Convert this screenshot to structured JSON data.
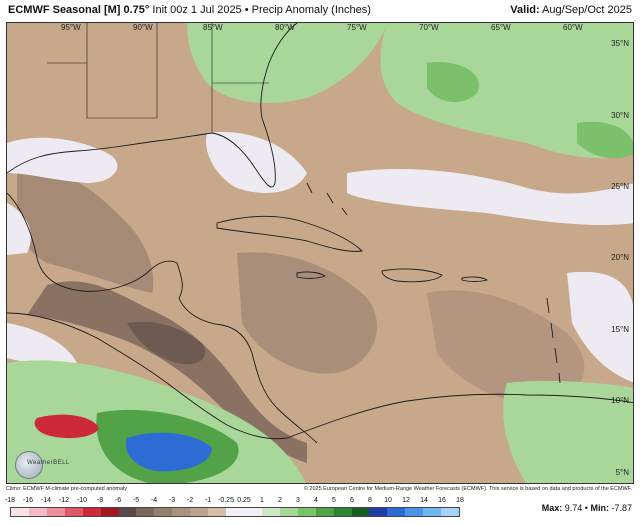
{
  "header": {
    "model": "ECMWF Seasonal [M] 0.75°",
    "init": "Init 00z 1 Jul 2025",
    "separator": "•",
    "product": "Precip Anomaly (Inches)",
    "valid_label": "Valid:",
    "valid_value": "Aug/Sep/Oct 2025"
  },
  "map": {
    "lon_labels": [
      "95°W",
      "90°W",
      "85°W",
      "80°W",
      "75°W",
      "70°W",
      "65°W",
      "60°W"
    ],
    "lat_labels": [
      "35°N",
      "30°N",
      "25°N",
      "20°N",
      "15°N",
      "10°N",
      "5°N"
    ],
    "logo_text": "WeatherBELL"
  },
  "footer": {
    "left_note": "Climo: ECMWF M-climate pre-computed anomaly",
    "right_note": "© 2025 European Centre for Medium-Range Weather Forecasts (ECMWF). This service is based on data and products of the ECMWF.",
    "max_label": "Max:",
    "max_value": "9.74",
    "min_label": "Min:",
    "min_value": "-7.87",
    "bullet": "•"
  },
  "colorbar": {
    "labels": [
      "-18",
      "-16",
      "-14",
      "-12",
      "-10",
      "-8",
      "-6",
      "-5",
      "-4",
      "-3",
      "-2",
      "-1",
      "-0.25",
      "0.25",
      "1",
      "2",
      "3",
      "4",
      "5",
      "6",
      "8",
      "10",
      "12",
      "14",
      "16",
      "18"
    ],
    "colors": [
      "#fbe3e6",
      "#f4bcc3",
      "#ec8f99",
      "#df5a66",
      "#cc2a3a",
      "#a01820",
      "#5a4a44",
      "#7a685e",
      "#93806f",
      "#a99280",
      "#bea28c",
      "#d5bca6",
      "#f3eff8",
      "#f3eff8",
      "#cfe8c4",
      "#a8d79a",
      "#7cc06c",
      "#52a348",
      "#2f8434",
      "#1c5e22",
      "#1f3fa8",
      "#2f6bd4",
      "#4b94e6",
      "#74b6f0",
      "#a5d2f7"
    ]
  }
}
